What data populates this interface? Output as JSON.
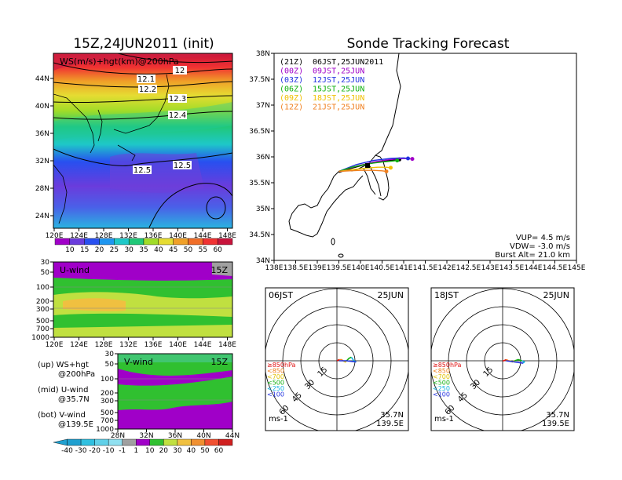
{
  "titles": {
    "left": "15Z,24JUN2011 (init)",
    "right": "Sonde Tracking Forecast"
  },
  "panels": {
    "ws_label": "WS(m/s)+hgt(km)@200hPa",
    "u_label": "U-wind",
    "u_time": "15Z",
    "v_label": "V-wind",
    "v_time": "15Z"
  },
  "side_notes": [
    {
      "head": "(up) WS+hgt",
      "sub": "@200hPa"
    },
    {
      "head": "(mid) U-wind",
      "sub": "@35.7N"
    },
    {
      "head": "(bot) V-wind",
      "sub": "@139.5E"
    }
  ],
  "ws_colorbar": [
    "10",
    "15",
    "20",
    "25",
    "30",
    "35",
    "40",
    "45",
    "50",
    "55",
    "60"
  ],
  "uv_colorbar": [
    "-40",
    "-30",
    "-20",
    "-10",
    "-1",
    "1",
    "10",
    "20",
    "30",
    "40",
    "50",
    "60"
  ],
  "hgt_contours": [
    "12",
    "12.1",
    "12.2",
    "12.3",
    "12.4",
    "12.5",
    "12.5"
  ],
  "ws_map": {
    "lon_ticks": [
      "120E",
      "124E",
      "128E",
      "132E",
      "136E",
      "140E",
      "144E",
      "148E"
    ],
    "lat_ticks": [
      "44N",
      "40N",
      "36N",
      "32N",
      "28N",
      "24N"
    ]
  },
  "u_panel": {
    "lon_ticks": [
      "120E",
      "124E",
      "128E",
      "132E",
      "136E",
      "140E",
      "144E",
      "148E"
    ],
    "p_ticks": [
      "30",
      "50",
      "100",
      "200",
      "300",
      "500",
      "700",
      "1000"
    ]
  },
  "v_panel": {
    "lat_ticks": [
      "28N",
      "32N",
      "36N",
      "40N",
      "44N"
    ],
    "p_ticks": [
      "30",
      "50",
      "100",
      "200",
      "300",
      "500",
      "700",
      "1000"
    ]
  },
  "track_map": {
    "lon_ticks": [
      "138E",
      "138.5E",
      "139E",
      "139.5E",
      "140E",
      "140.5E",
      "141E",
      "141.5E",
      "142E",
      "142.5E",
      "143E",
      "143.5E",
      "144E",
      "144.5E",
      "145E"
    ],
    "lat_ticks": [
      "38N",
      "37.5N",
      "37N",
      "36.5N",
      "36N",
      "35.5N",
      "35N",
      "34.5N",
      "34N"
    ],
    "legend": [
      {
        "code": "(21Z)",
        "time": "06JST,25JUN2011",
        "color": "#000000"
      },
      {
        "code": "(00Z)",
        "time": "09JST,25JUN",
        "color": "#a000c8"
      },
      {
        "code": "(03Z)",
        "time": "12JST,25JUN",
        "color": "#2030e0"
      },
      {
        "code": "(06Z)",
        "time": "15JST,25JUN",
        "color": "#10b010"
      },
      {
        "code": "(09Z)",
        "time": "18JST,25JUN",
        "color": "#f0c000"
      },
      {
        "code": "(12Z)",
        "time": "21JST,25JUN",
        "color": "#f08020"
      }
    ],
    "params": [
      "VUP= 4.5 m/s",
      "VDW= -3.0 m/s",
      "Burst Alt= 21.0 km"
    ]
  },
  "hodographs": [
    {
      "time": "06JST",
      "date": "25JUN",
      "units": "ms-1",
      "lat": "35.7N",
      "lon": "139.5E"
    },
    {
      "time": "18JST",
      "date": "25JUN",
      "units": "ms-1",
      "lat": "35.7N",
      "lon": "139.5E"
    }
  ],
  "hodo_rings": [
    "15",
    "30",
    "45",
    "60"
  ],
  "hodo_legend": [
    {
      "text": "≥850hPa",
      "color": "#e01010"
    },
    {
      "text": "<850",
      "color": "#f08020"
    },
    {
      "text": "<700",
      "color": "#e0c000"
    },
    {
      "text": "<500",
      "color": "#10b010"
    },
    {
      "text": "<250",
      "color": "#10b0e0"
    },
    {
      "text": "<100",
      "color": "#2030e0"
    }
  ],
  "colors": {
    "ws_scale": [
      "#a000c8",
      "#6a3cdc",
      "#2850f0",
      "#1e96f0",
      "#1ec8c8",
      "#20c878",
      "#a0dc28",
      "#e6dc32",
      "#f0a028",
      "#f06e28",
      "#f03232",
      "#c8143c"
    ],
    "uv_scale": [
      "#20a0d0",
      "#30c0e0",
      "#60d0e8",
      "#90e0f0",
      "#a0a0a0",
      "#a000c8",
      "#30c030",
      "#c0e040",
      "#f0c040",
      "#f09030",
      "#f05030",
      "#d02020"
    ]
  },
  "chart_data": [
    {
      "type": "heatmap",
      "title": "15Z,24JUN2011 (init)",
      "subtitle": "WS(m/s)+hgt(km)@200hPa",
      "x": [
        "120E",
        "124E",
        "128E",
        "132E",
        "136E",
        "140E",
        "144E",
        "148E"
      ],
      "y": [
        "44N",
        "40N",
        "36N",
        "32N",
        "28N",
        "24N"
      ],
      "xlim": [
        120,
        150
      ],
      "ylim": [
        22,
        46
      ],
      "contour_labels": [
        "12",
        "12.1",
        "12.2",
        "12.3",
        "12.4",
        "12.5",
        "12.5"
      ],
      "colorbar": [
        10,
        15,
        20,
        25,
        30,
        35,
        40,
        45,
        50,
        55,
        60
      ]
    },
    {
      "type": "heatmap",
      "title": "U-wind",
      "subtitle": "15Z",
      "x": [
        "120E",
        "124E",
        "128E",
        "132E",
        "136E",
        "140E",
        "144E",
        "148E"
      ],
      "y": [
        "30",
        "50",
        "100",
        "200",
        "300",
        "500",
        "700",
        "1000"
      ],
      "xlim": [
        120,
        150
      ],
      "ylim": [
        1000,
        30
      ]
    },
    {
      "type": "heatmap",
      "title": "V-wind",
      "subtitle": "15Z",
      "x": [
        "28N",
        "32N",
        "36N",
        "40N",
        "44N"
      ],
      "y": [
        "30",
        "50",
        "100",
        "200",
        "300",
        "500",
        "700",
        "1000"
      ],
      "xlim": [
        28,
        44
      ],
      "ylim": [
        1000,
        30
      ],
      "colorbar": [
        -40,
        -30,
        -20,
        -10,
        -1,
        1,
        10,
        20,
        30,
        40,
        50,
        60
      ]
    },
    {
      "type": "line",
      "title": "Sonde Tracking Forecast",
      "xlim": [
        138,
        145
      ],
      "ylim": [
        34,
        38
      ],
      "series": [
        {
          "name": "(21Z) 06JST,25JUN2011",
          "color": "#000000",
          "x": [
            139.5,
            139.8,
            140.1,
            140.4,
            140.7,
            140.9
          ],
          "y": [
            35.7,
            35.78,
            35.85,
            35.9,
            35.93,
            35.95
          ]
        },
        {
          "name": "(00Z) 09JST,25JUN",
          "color": "#a000c8",
          "x": [
            139.5,
            139.9,
            140.3,
            140.7,
            141.0,
            141.2
          ],
          "y": [
            35.72,
            35.82,
            35.9,
            35.95,
            35.97,
            35.96
          ]
        },
        {
          "name": "(03Z) 12JST,25JUN",
          "color": "#2030e0",
          "x": [
            139.5,
            139.9,
            140.3,
            140.7,
            141.0,
            141.1
          ],
          "y": [
            35.72,
            35.85,
            35.93,
            35.97,
            35.98,
            35.97
          ]
        },
        {
          "name": "(06Z) 15JST,25JUN",
          "color": "#10b010",
          "x": [
            139.5,
            139.8,
            140.2,
            140.5,
            140.75,
            140.85
          ],
          "y": [
            35.72,
            35.8,
            35.87,
            35.9,
            35.92,
            35.93
          ]
        },
        {
          "name": "(09Z) 18JST,25JUN",
          "color": "#f0c000",
          "x": [
            139.5,
            139.8,
            140.1,
            140.4,
            140.6,
            140.7
          ],
          "y": [
            35.72,
            35.75,
            35.78,
            35.8,
            35.8,
            35.79
          ]
        },
        {
          "name": "(12Z) 21JST,25JUN",
          "color": "#f08020",
          "x": [
            139.5,
            139.75,
            140.0,
            140.3,
            140.5,
            140.6
          ],
          "y": [
            35.72,
            35.73,
            35.74,
            35.74,
            35.73,
            35.72
          ]
        }
      ],
      "notes": [
        "VUP= 4.5 m/s",
        "VDW= -3.0 m/s",
        "Burst Alt= 21.0 km"
      ]
    },
    {
      "type": "line",
      "title": "06JST 25JUN",
      "subtitle": "ms-1 35.7N 139.5E",
      "rings": [
        15,
        30,
        45,
        60
      ],
      "series": [
        {
          "name": "≥850hPa",
          "color": "#e01010",
          "u": [
            0,
            1,
            2
          ],
          "v": [
            0,
            0.5,
            1
          ]
        },
        {
          "name": "<850",
          "color": "#f08020",
          "u": [
            2,
            4,
            5
          ],
          "v": [
            1,
            1,
            0
          ]
        },
        {
          "name": "<700",
          "color": "#e0c000",
          "u": [
            5,
            7,
            8
          ],
          "v": [
            0,
            -1,
            0
          ]
        },
        {
          "name": "<500",
          "color": "#10b010",
          "u": [
            8,
            10,
            12
          ],
          "v": [
            0,
            2,
            3
          ]
        },
        {
          "name": "<250",
          "color": "#10b0e0",
          "u": [
            12,
            14,
            16
          ],
          "v": [
            3,
            0,
            -1
          ]
        },
        {
          "name": "<100",
          "color": "#2030e0",
          "u": [
            16,
            8,
            2
          ],
          "v": [
            -1,
            0,
            0
          ]
        }
      ]
    },
    {
      "type": "line",
      "title": "18JST 25JUN",
      "subtitle": "ms-1 35.7N 139.5E",
      "rings": [
        15,
        30,
        45,
        60
      ],
      "series": [
        {
          "name": "≥850hPa",
          "color": "#e01010",
          "u": [
            0,
            1,
            3
          ],
          "v": [
            0,
            0,
            1
          ]
        },
        {
          "name": "<850",
          "color": "#f08020",
          "u": [
            3,
            5,
            6
          ],
          "v": [
            1,
            0,
            0
          ]
        },
        {
          "name": "<700",
          "color": "#e0c000",
          "u": [
            6,
            8,
            10
          ],
          "v": [
            0,
            -1,
            0
          ]
        },
        {
          "name": "<500",
          "color": "#10b010",
          "u": [
            10,
            13,
            16
          ],
          "v": [
            0,
            1,
            0
          ]
        },
        {
          "name": "<250",
          "color": "#10b0e0",
          "u": [
            16,
            18,
            17
          ],
          "v": [
            0,
            -1,
            -2
          ]
        },
        {
          "name": "<100",
          "color": "#2030e0",
          "u": [
            17,
            10,
            3
          ],
          "v": [
            -2,
            -1,
            0
          ]
        }
      ]
    }
  ]
}
